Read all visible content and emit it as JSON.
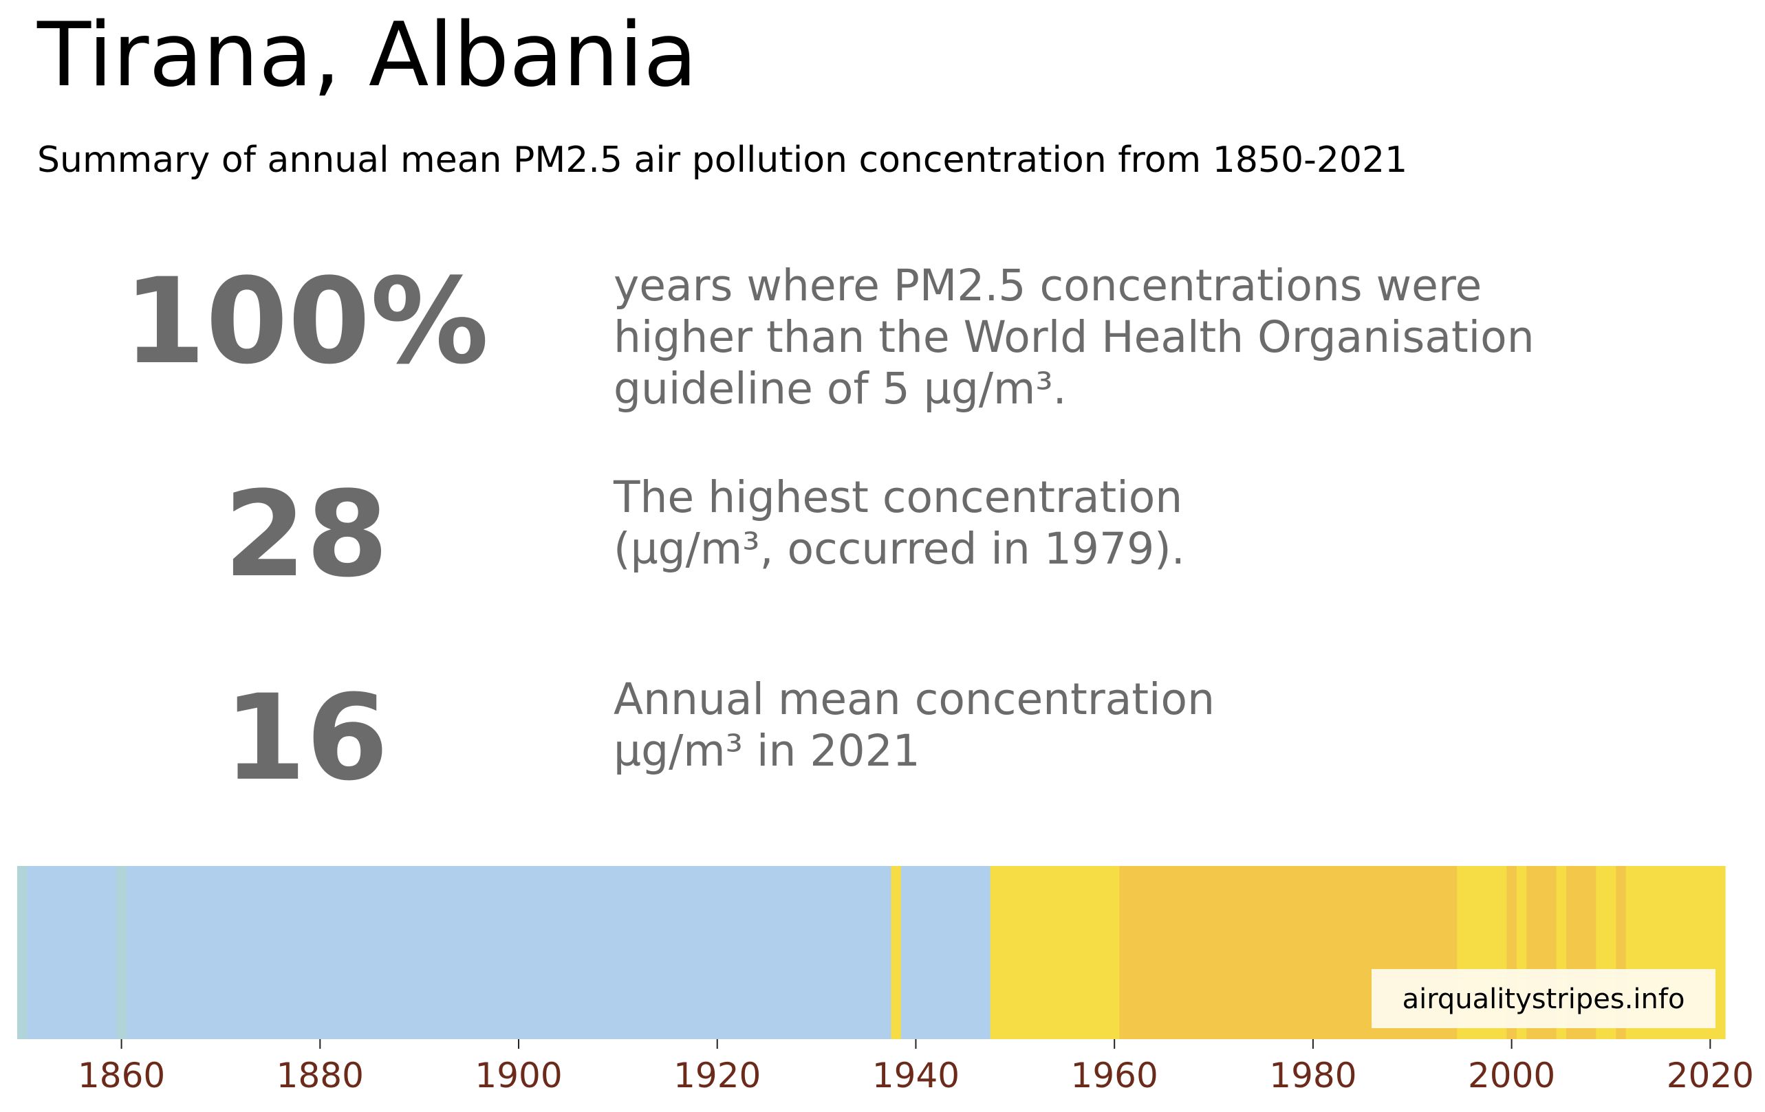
{
  "header": {
    "title": "Tirana, Albania",
    "subtitle": "Summary of annual mean PM2.5 air pollution concentration from 1850-2021"
  },
  "stats": [
    {
      "value": "100%",
      "description": "years where PM2.5 concentrations were\nhigher than the World Health Organisation\nguideline of 5 µg/m³."
    },
    {
      "value": "28",
      "description": "The highest concentration\n(µg/m³, occurred in 1979)."
    },
    {
      "value": "16",
      "description": "Annual mean concentration\nµg/m³ in 2021"
    }
  ],
  "watermark": "airqualitystripes.info",
  "colors": {
    "stat_text": "#6b6b6b",
    "tick_label": "#6b2a1a",
    "stripe_light_blue": "#b0d4d8",
    "stripe_blue": "#b0cfed",
    "stripe_yellow": "#f7dd45",
    "stripe_orange": "#f2c74a"
  },
  "chart_data": {
    "type": "heatmap",
    "title": "",
    "xlabel": "",
    "ylabel": "",
    "xlim": [
      1849.5,
      2021.5
    ],
    "x_ticks": [
      "1860",
      "1880",
      "1900",
      "1920",
      "1940",
      "1960",
      "1980",
      "2000",
      "2020"
    ],
    "grid": false,
    "legend": "none",
    "year_bands": [
      {
        "from": 1850,
        "to": 1850,
        "color": "#b0d4d8"
      },
      {
        "from": 1851,
        "to": 1859,
        "color": "#b0cfed"
      },
      {
        "from": 1860,
        "to": 1860,
        "color": "#b0d4d8"
      },
      {
        "from": 1861,
        "to": 1937,
        "color": "#b0cfed"
      },
      {
        "from": 1938,
        "to": 1938,
        "color": "#f7dd45"
      },
      {
        "from": 1939,
        "to": 1947,
        "color": "#b0cfed"
      },
      {
        "from": 1948,
        "to": 1960,
        "color": "#f7dd45"
      },
      {
        "from": 1961,
        "to": 1994,
        "color": "#f2c74a"
      },
      {
        "from": 1995,
        "to": 1999,
        "color": "#f7dd45"
      },
      {
        "from": 2000,
        "to": 2000,
        "color": "#f2c74a"
      },
      {
        "from": 2001,
        "to": 2001,
        "color": "#f7dd45"
      },
      {
        "from": 2002,
        "to": 2004,
        "color": "#f2c74a"
      },
      {
        "from": 2005,
        "to": 2005,
        "color": "#f7dd45"
      },
      {
        "from": 2006,
        "to": 2008,
        "color": "#f2c74a"
      },
      {
        "from": 2009,
        "to": 2010,
        "color": "#f7dd45"
      },
      {
        "from": 2011,
        "to": 2011,
        "color": "#f2c74a"
      },
      {
        "from": 2012,
        "to": 2021,
        "color": "#f7dd45"
      }
    ]
  }
}
